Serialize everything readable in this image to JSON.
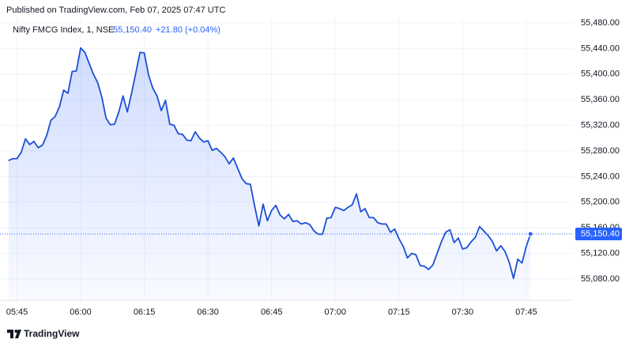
{
  "header": {
    "published": "Published on TradingView.com, Feb 07, 2025 07:47 UTC"
  },
  "chart_data": {
    "type": "area",
    "symbol": "Nifty FMCG Index, 1, NSE",
    "last_label": "55,150.40",
    "change": "+21.80 (+0.04%)",
    "color": "#1c4fd6",
    "grid": true,
    "x": [
      "05:43",
      "05:44",
      "05:45",
      "05:46",
      "05:47",
      "05:48",
      "05:49",
      "05:50",
      "05:51",
      "05:52",
      "05:53",
      "05:54",
      "05:55",
      "05:56",
      "05:57",
      "05:58",
      "05:59",
      "06:00",
      "06:01",
      "06:02",
      "06:03",
      "06:04",
      "06:05",
      "06:06",
      "06:07",
      "06:08",
      "06:09",
      "06:10",
      "06:11",
      "06:12",
      "06:13",
      "06:14",
      "06:15",
      "06:16",
      "06:17",
      "06:18",
      "06:19",
      "06:20",
      "06:21",
      "06:22",
      "06:23",
      "06:24",
      "06:25",
      "06:26",
      "06:27",
      "06:28",
      "06:29",
      "06:30",
      "06:31",
      "06:32",
      "06:33",
      "06:34",
      "06:35",
      "06:36",
      "06:37",
      "06:38",
      "06:39",
      "06:40",
      "06:41",
      "06:42",
      "06:43",
      "06:44",
      "06:45",
      "06:46",
      "06:47",
      "06:48",
      "06:49",
      "06:50",
      "06:51",
      "06:52",
      "06:53",
      "06:54",
      "06:55",
      "06:56",
      "06:57",
      "06:58",
      "06:59",
      "07:00",
      "07:01",
      "07:02",
      "07:03",
      "07:04",
      "07:05",
      "07:06",
      "07:07",
      "07:08",
      "07:09",
      "07:10",
      "07:11",
      "07:12",
      "07:13",
      "07:14",
      "07:15",
      "07:16",
      "07:17",
      "07:18",
      "07:19",
      "07:20",
      "07:21",
      "07:22",
      "07:23",
      "07:24",
      "07:25",
      "07:26",
      "07:27",
      "07:28",
      "07:29",
      "07:30",
      "07:31",
      "07:32",
      "07:33",
      "07:34",
      "07:35",
      "07:36",
      "07:37",
      "07:38",
      "07:39",
      "07:40",
      "07:41",
      "07:42",
      "07:43",
      "07:44",
      "07:45",
      "07:46"
    ],
    "values": [
      55265,
      55268,
      55268,
      55278,
      55299,
      55290,
      55295,
      55285,
      55289,
      55304,
      55328,
      55334,
      55349,
      55375,
      55370,
      55404,
      55405,
      55441,
      55434,
      55417,
      55400,
      55387,
      55364,
      55331,
      55321,
      55322,
      55341,
      55366,
      55341,
      55370,
      55402,
      55434,
      55433,
      55399,
      55378,
      55366,
      55343,
      55359,
      55322,
      55320,
      55307,
      55306,
      55297,
      55296,
      55310,
      55300,
      55294,
      55296,
      55281,
      55284,
      55278,
      55271,
      55260,
      55269,
      55253,
      55237,
      55229,
      55228,
      55194,
      55163,
      55197,
      55171,
      55187,
      55195,
      55180,
      55174,
      55181,
      55170,
      55171,
      55166,
      55168,
      55165,
      55155,
      55150,
      55150,
      55175,
      55176,
      55192,
      55190,
      55187,
      55192,
      55196,
      55213,
      55185,
      55190,
      55176,
      55176,
      55168,
      55166,
      55166,
      55153,
      55158,
      55143,
      55131,
      55113,
      55120,
      55118,
      55101,
      55100,
      55095,
      55102,
      55120,
      55138,
      55153,
      55157,
      55137,
      55144,
      55127,
      55129,
      55138,
      55145,
      55162,
      55155,
      55148,
      55139,
      55124,
      55132,
      55123,
      55106,
      55081,
      55111,
      55105,
      55131,
      55150.4
    ],
    "xlim": [
      "05:41",
      "07:56"
    ],
    "xticks": [
      "05:45",
      "06:00",
      "06:15",
      "06:30",
      "06:45",
      "07:00",
      "07:15",
      "07:30",
      "07:45"
    ],
    "ylim": [
      55046.7,
      55488.6
    ],
    "yticks": [
      {
        "value": 55080,
        "label": "55,080.00"
      },
      {
        "value": 55120,
        "label": "55,120.00"
      },
      {
        "value": 55160,
        "label": "55,160.00"
      },
      {
        "value": 55200,
        "label": "55,200.00"
      },
      {
        "value": 55240,
        "label": "55,240.00"
      },
      {
        "value": 55280,
        "label": "55,280.00"
      },
      {
        "value": 55320,
        "label": "55,320.00"
      },
      {
        "value": 55360,
        "label": "55,360.00"
      },
      {
        "value": 55400,
        "label": "55,400.00"
      },
      {
        "value": 55440,
        "label": "55,440.00"
      },
      {
        "value": 55480,
        "label": "55,480.00"
      }
    ]
  },
  "footer": {
    "brand": "TradingView"
  }
}
